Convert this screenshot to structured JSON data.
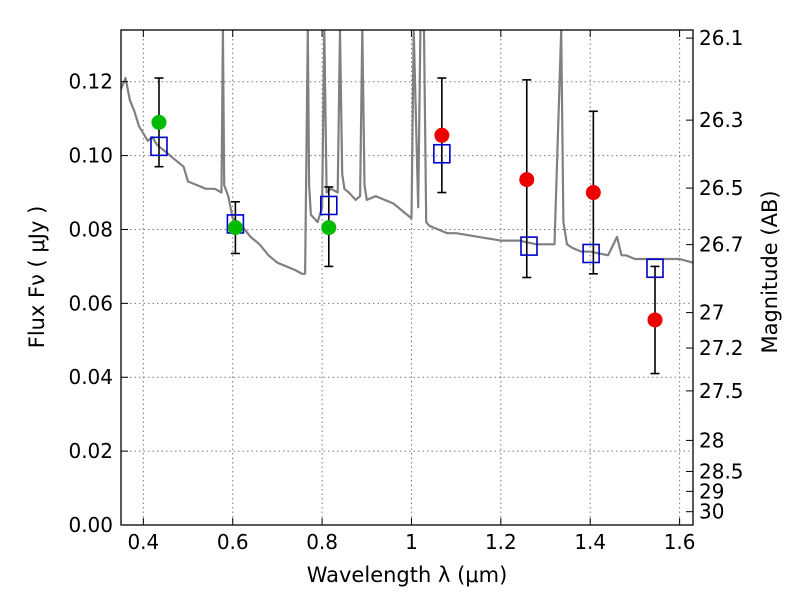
{
  "chart_data": {
    "type": "scatter",
    "xlabel": "Wavelength  λ (μm)",
    "ylabel_left": "Flux  Fν  ( μJy )",
    "ylabel_right": "Magnitude (AB)",
    "xlim": [
      0.35,
      1.63
    ],
    "ylim": [
      0.0,
      0.134
    ],
    "grid": true,
    "x_ticks": [
      0.4,
      0.6,
      0.8,
      1.0,
      1.2,
      1.4,
      1.6
    ],
    "x_tick_labels": [
      "0.4",
      "0.6",
      "0.8",
      "1",
      "1.2",
      "1.4",
      "1.6"
    ],
    "y_ticks": [
      0.0,
      0.02,
      0.04,
      0.06,
      0.08,
      0.1,
      0.12
    ],
    "y_tick_labels": [
      "0.00",
      "0.02",
      "0.04",
      "0.06",
      "0.08",
      "0.10",
      "0.12"
    ],
    "mag_ticks": [
      {
        "label": "26.1",
        "flux": 0.1318
      },
      {
        "label": "26.3",
        "flux": 0.1096
      },
      {
        "label": "26.5",
        "flux": 0.0912
      },
      {
        "label": "26.7",
        "flux": 0.0759
      },
      {
        "label": "27",
        "flux": 0.0575
      },
      {
        "label": "27.2",
        "flux": 0.0479
      },
      {
        "label": "27.5",
        "flux": 0.0363
      },
      {
        "label": "28",
        "flux": 0.0229
      },
      {
        "label": "28.5",
        "flux": 0.0145
      },
      {
        "label": "29",
        "flux": 0.0091
      },
      {
        "label": "30",
        "flux": 0.0036
      }
    ],
    "colors": {
      "model": "#808080",
      "green": "#00bb00",
      "red": "#ee0000",
      "square": "#0000cc",
      "errorbar": "#000000"
    },
    "series": [
      {
        "name": "model_spectrum",
        "kind": "line",
        "x": [
          0.35,
          0.36,
          0.37,
          0.38,
          0.39,
          0.4,
          0.41,
          0.42,
          0.43,
          0.44,
          0.45,
          0.46,
          0.47,
          0.48,
          0.49,
          0.5,
          0.52,
          0.54,
          0.56,
          0.575,
          0.578,
          0.581,
          0.59,
          0.6,
          0.62,
          0.64,
          0.66,
          0.68,
          0.7,
          0.72,
          0.74,
          0.755,
          0.762,
          0.768,
          0.771,
          0.775,
          0.79,
          0.8,
          0.805,
          0.81,
          0.82,
          0.835,
          0.84,
          0.845,
          0.85,
          0.86,
          0.875,
          0.885,
          0.89,
          0.895,
          0.9,
          0.92,
          0.94,
          0.96,
          0.98,
          1.0,
          1.005,
          1.015,
          1.02,
          1.028,
          1.033,
          1.04,
          1.06,
          1.08,
          1.1,
          1.15,
          1.2,
          1.24,
          1.28,
          1.32,
          1.335,
          1.34,
          1.348,
          1.36,
          1.38,
          1.4,
          1.44,
          1.46,
          1.47,
          1.48,
          1.5,
          1.55,
          1.58,
          1.6,
          1.63
        ],
        "y": [
          0.118,
          0.121,
          0.115,
          0.112,
          0.108,
          0.106,
          0.104,
          0.105,
          0.103,
          0.102,
          0.101,
          0.1,
          0.099,
          0.098,
          0.097,
          0.093,
          0.092,
          0.091,
          0.091,
          0.09,
          0.134,
          0.092,
          0.089,
          0.083,
          0.081,
          0.078,
          0.076,
          0.073,
          0.071,
          0.07,
          0.069,
          0.068,
          0.068,
          0.134,
          0.092,
          0.084,
          0.082,
          0.086,
          0.134,
          0.09,
          0.091,
          0.09,
          0.134,
          0.095,
          0.091,
          0.09,
          0.088,
          0.089,
          0.134,
          0.092,
          0.088,
          0.089,
          0.088,
          0.087,
          0.085,
          0.083,
          0.134,
          0.086,
          0.134,
          0.134,
          0.082,
          0.081,
          0.08,
          0.079,
          0.079,
          0.078,
          0.077,
          0.077,
          0.076,
          0.076,
          0.134,
          0.082,
          0.076,
          0.075,
          0.074,
          0.074,
          0.073,
          0.078,
          0.073,
          0.073,
          0.072,
          0.072,
          0.072,
          0.072,
          0.071
        ]
      },
      {
        "name": "green_points",
        "kind": "points",
        "x": [
          0.435,
          0.606,
          0.815
        ],
        "y": [
          0.109,
          0.0805,
          0.0805
        ]
      },
      {
        "name": "red_points",
        "kind": "points",
        "x": [
          1.068,
          1.258,
          1.407,
          1.545
        ],
        "y": [
          0.1055,
          0.0935,
          0.09,
          0.0555
        ]
      },
      {
        "name": "model_band_fluxes",
        "kind": "squares",
        "x": [
          0.435,
          0.606,
          0.815,
          1.068,
          1.263,
          1.402,
          1.545
        ],
        "y": [
          0.1025,
          0.0815,
          0.0865,
          0.1005,
          0.0755,
          0.0735,
          0.0695
        ]
      },
      {
        "name": "error_bars",
        "kind": "errorbars",
        "x": [
          0.435,
          0.606,
          0.815,
          1.068,
          1.258,
          1.407,
          1.545
        ],
        "y_low": [
          0.097,
          0.0735,
          0.07,
          0.09,
          0.067,
          0.068,
          0.041
        ],
        "y_high": [
          0.121,
          0.0875,
          0.0915,
          0.121,
          0.1205,
          0.112,
          0.07
        ]
      }
    ]
  }
}
